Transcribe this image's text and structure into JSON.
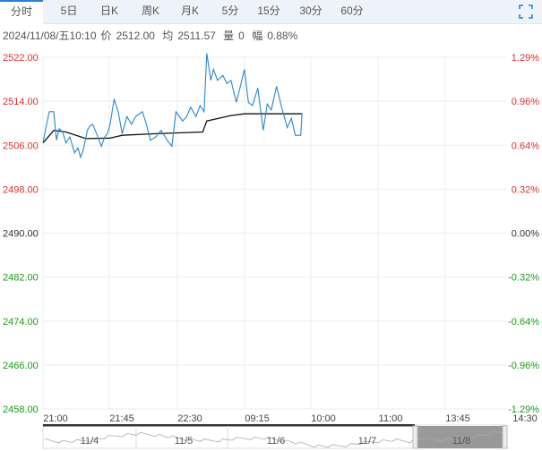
{
  "tabs": [
    "分时",
    "5日",
    "日K",
    "周K",
    "月K",
    "5分",
    "15分",
    "30分",
    "60分"
  ],
  "active_tab": 0,
  "info": {
    "datetime": "2024/11/08/五10:10",
    "price_label": "价",
    "price": "2512.00",
    "avg_label": "均",
    "avg": "2511.57",
    "vol_label": "量",
    "vol": "0",
    "chg_label": "幅",
    "chg": "0.88%"
  },
  "colors": {
    "up": "#d9302c",
    "down": "#1a9a1a",
    "flat": "#333333",
    "price_line": "#2a86c8",
    "avg_line": "#111111",
    "grid": "#e8edf2"
  },
  "chart_data": {
    "type": "line",
    "y_labels": [
      "2522.00",
      "2514.00",
      "2506.00",
      "2498.00",
      "2490.00",
      "2482.00",
      "2474.00",
      "2466.00",
      "2458.00"
    ],
    "pct_labels": [
      "1.29%",
      "0.96%",
      "0.64%",
      "0.32%",
      "0.00%",
      "-0.32%",
      "-0.64%",
      "-0.96%",
      "-1.29%"
    ],
    "ylim": [
      2458,
      2522
    ],
    "prev_close": 2490,
    "session_minutes": 345,
    "x_labels": [
      "21:00",
      "21:45",
      "22:30",
      "09:15",
      "10:00",
      "11:00",
      "13:45",
      "14:30"
    ],
    "price": [
      [
        0,
        2506.4
      ],
      [
        2,
        2509
      ],
      [
        4.7,
        2512.1
      ],
      [
        8,
        2512.1
      ],
      [
        10,
        2506.9
      ],
      [
        12,
        2509
      ],
      [
        14.7,
        2508.4
      ],
      [
        17,
        2506.4
      ],
      [
        20,
        2507.5
      ],
      [
        23.5,
        2504.6
      ],
      [
        26,
        2505.5
      ],
      [
        28,
        2503.8
      ],
      [
        30,
        2505.2
      ],
      [
        33,
        2508.7
      ],
      [
        35,
        2509.5
      ],
      [
        37,
        2509.8
      ],
      [
        40,
        2508.1
      ],
      [
        43.5,
        2505.8
      ],
      [
        46,
        2507.5
      ],
      [
        48,
        2508.1
      ],
      [
        50,
        2509.8
      ],
      [
        53,
        2514.4
      ],
      [
        56,
        2512.1
      ],
      [
        59,
        2508.1
      ],
      [
        62.5,
        2511.2
      ],
      [
        66,
        2509.8
      ],
      [
        69,
        2511.2
      ],
      [
        74,
        2512.1
      ],
      [
        77,
        2509.8
      ],
      [
        80,
        2506.9
      ],
      [
        84,
        2507.5
      ],
      [
        88,
        2508.7
      ],
      [
        92.5,
        2506.9
      ],
      [
        96,
        2505.8
      ],
      [
        99,
        2512.1
      ],
      [
        104,
        2510.4
      ],
      [
        107,
        2511.2
      ],
      [
        110,
        2512.9
      ],
      [
        114,
        2511.2
      ],
      [
        117,
        2513.2
      ],
      [
        120,
        2512.1
      ],
      [
        122,
        2522.7
      ],
      [
        125,
        2517.8
      ],
      [
        127,
        2519.8
      ],
      [
        130,
        2517.8
      ],
      [
        134,
        2518.7
      ],
      [
        137,
        2517.2
      ],
      [
        140,
        2517.8
      ],
      [
        144,
        2513.8
      ],
      [
        147,
        2516.7
      ],
      [
        150,
        2519.8
      ],
      [
        153,
        2513.8
      ],
      [
        156,
        2513.2
      ],
      [
        160,
        2516.4
      ],
      [
        164,
        2508.7
      ],
      [
        167,
        2513.5
      ],
      [
        170,
        2512.4
      ],
      [
        174,
        2516.7
      ],
      [
        178,
        2512.7
      ],
      [
        182,
        2509.2
      ],
      [
        185,
        2510.9
      ],
      [
        188,
        2507.8
      ],
      [
        192,
        2507.8
      ],
      [
        193,
        2511.8
      ]
    ],
    "avg": [
      [
        0,
        2506.4
      ],
      [
        8,
        2508.7
      ],
      [
        17,
        2508.4
      ],
      [
        32,
        2507.2
      ],
      [
        50,
        2507.3
      ],
      [
        59,
        2507.8
      ],
      [
        84,
        2508.1
      ],
      [
        119,
        2508.4
      ],
      [
        122,
        2510.4
      ],
      [
        140,
        2511.4
      ],
      [
        150,
        2511.7
      ],
      [
        193,
        2511.7
      ]
    ]
  },
  "navigator": {
    "dates": [
      "11/4",
      "11/5",
      "11/6",
      "11/7",
      "11/8"
    ]
  }
}
